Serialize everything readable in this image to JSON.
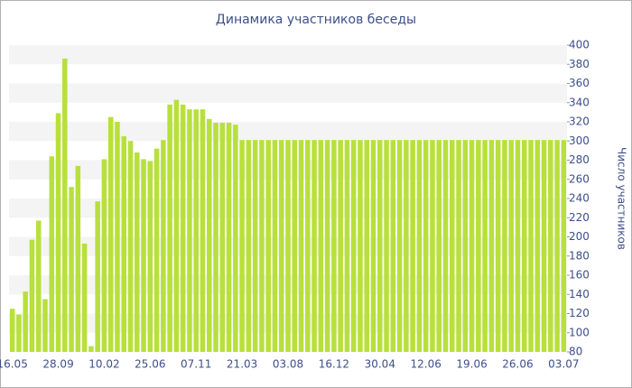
{
  "chart_data": {
    "type": "bar",
    "title": "Динамика участников беседы",
    "y_label": "Число участников",
    "color": "#b8e03c",
    "categories": [
      "16.05",
      null,
      null,
      null,
      null,
      null,
      null,
      "28.09",
      null,
      null,
      null,
      null,
      null,
      null,
      "10.02",
      null,
      null,
      null,
      null,
      null,
      null,
      "25.06",
      null,
      null,
      null,
      null,
      null,
      null,
      "07.11",
      null,
      null,
      null,
      null,
      null,
      null,
      "21.03",
      null,
      null,
      null,
      null,
      null,
      null,
      "03.08",
      null,
      null,
      null,
      null,
      null,
      null,
      "16.12",
      null,
      null,
      null,
      null,
      null,
      null,
      "30.04",
      null,
      null,
      null,
      null,
      null,
      null,
      "12.06",
      null,
      null,
      null,
      null,
      null,
      null,
      "19.06",
      null,
      null,
      null,
      null,
      null,
      null,
      "26.06",
      null,
      null,
      null,
      null,
      null,
      null,
      "03.07"
    ],
    "values": [
      125,
      119,
      143,
      197,
      217,
      135,
      284,
      329,
      386,
      252,
      274,
      193,
      86,
      237,
      281,
      325,
      320,
      305,
      300,
      288,
      281,
      279,
      292,
      301,
      338,
      343,
      338,
      333,
      333,
      333,
      323,
      319,
      319,
      319,
      317,
      301,
      301,
      301,
      301,
      301,
      301,
      301,
      301,
      301,
      301,
      301,
      301,
      301,
      301,
      301,
      301,
      301,
      301,
      301,
      301,
      301,
      301,
      301,
      301,
      301,
      301,
      301,
      301,
      301,
      301,
      301,
      301,
      301,
      301,
      301,
      301,
      301,
      301,
      301,
      301,
      301,
      301,
      301,
      301,
      301,
      301,
      301,
      301,
      301,
      301
    ],
    "ylim": [
      80,
      400
    ],
    "yticks": [
      80,
      100,
      120,
      140,
      160,
      180,
      200,
      220,
      240,
      260,
      280,
      300,
      320,
      340,
      360,
      380,
      400
    ],
    "grid": "bands",
    "y_axis_side": "right"
  }
}
